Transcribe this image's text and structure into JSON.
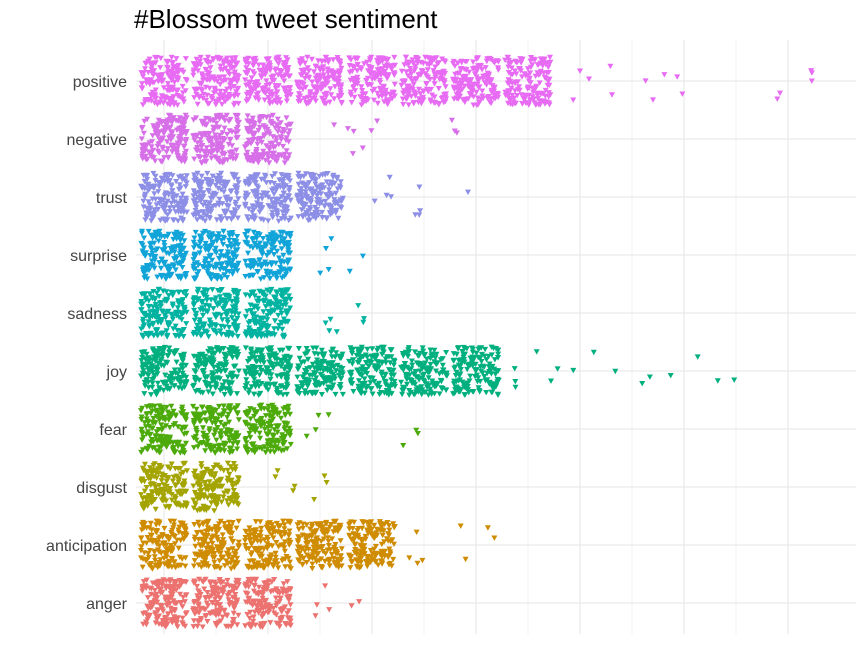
{
  "chart_data": {
    "type": "scatter",
    "title": "#Blossom tweet sentiment",
    "xlabel": "",
    "ylabel": "",
    "marker": "triangle-down",
    "grid": true,
    "legend": "none",
    "categories": [
      "positive",
      "negative",
      "trust",
      "surprise",
      "sadness",
      "joy",
      "fear",
      "disgust",
      "anticipation",
      "anger"
    ],
    "xlim": [
      0,
      13.5
    ],
    "x_grid_major": [
      1,
      3,
      5,
      7,
      9,
      11,
      13
    ],
    "x_grid_minor": [
      0,
      2,
      4,
      6,
      8,
      10,
      12
    ],
    "series": [
      {
        "name": "positive",
        "color": "#E76BF3",
        "dense": [
          1,
          2,
          3,
          4,
          5,
          6,
          7,
          8
        ],
        "sparse": [
          [
            9.0,
            3
          ],
          [
            9.6,
            2
          ],
          [
            10.4,
            3
          ],
          [
            11.1,
            2
          ],
          [
            12.8,
            2
          ],
          [
            13.2,
            3
          ]
        ]
      },
      {
        "name": "negative",
        "color": "#D770E8",
        "dense": [
          1,
          2,
          3
        ],
        "sparse": [
          [
            4.4,
            4
          ],
          [
            5.0,
            3
          ],
          [
            6.5,
            3
          ]
        ]
      },
      {
        "name": "trust",
        "color": "#8D8FE6",
        "dense": [
          1,
          2,
          3,
          4
        ],
        "sparse": [
          [
            5.1,
            4
          ],
          [
            5.9,
            4
          ],
          [
            6.6,
            1
          ]
        ]
      },
      {
        "name": "surprise",
        "color": "#11A4D8",
        "dense": [
          1,
          2,
          3
        ],
        "sparse": [
          [
            4.2,
            4
          ],
          [
            4.8,
            2
          ]
        ]
      },
      {
        "name": "sadness",
        "color": "#00B3A1",
        "dense": [
          1,
          2,
          3
        ],
        "sparse": [
          [
            4.1,
            4
          ],
          [
            4.8,
            3
          ]
        ]
      },
      {
        "name": "joy",
        "color": "#00AF7E",
        "dense": [
          1,
          2,
          3,
          4,
          5,
          6,
          7
        ],
        "sparse": [
          [
            8.0,
            4
          ],
          [
            8.7,
            3
          ],
          [
            9.5,
            2
          ],
          [
            10.4,
            2
          ],
          [
            11.0,
            2
          ],
          [
            11.7,
            2
          ]
        ]
      },
      {
        "name": "fear",
        "color": "#4CAA0B",
        "dense": [
          1,
          2,
          3
        ],
        "sparse": [
          [
            4.0,
            4
          ],
          [
            5.8,
            3
          ]
        ]
      },
      {
        "name": "disgust",
        "color": "#A4A400",
        "dense": [
          1,
          2
        ],
        "sparse": [
          [
            3.3,
            4
          ],
          [
            4.0,
            3
          ]
        ]
      },
      {
        "name": "anticipation",
        "color": "#CF8C00",
        "dense": [
          1,
          2,
          3,
          4,
          5
        ],
        "sparse": [
          [
            5.8,
            4
          ],
          [
            6.6,
            2
          ],
          [
            7.2,
            2
          ]
        ]
      },
      {
        "name": "anger",
        "color": "#EC7270",
        "dense": [
          1,
          2,
          3
        ],
        "sparse": [
          [
            4.0,
            4
          ],
          [
            4.7,
            2
          ]
        ]
      }
    ]
  }
}
